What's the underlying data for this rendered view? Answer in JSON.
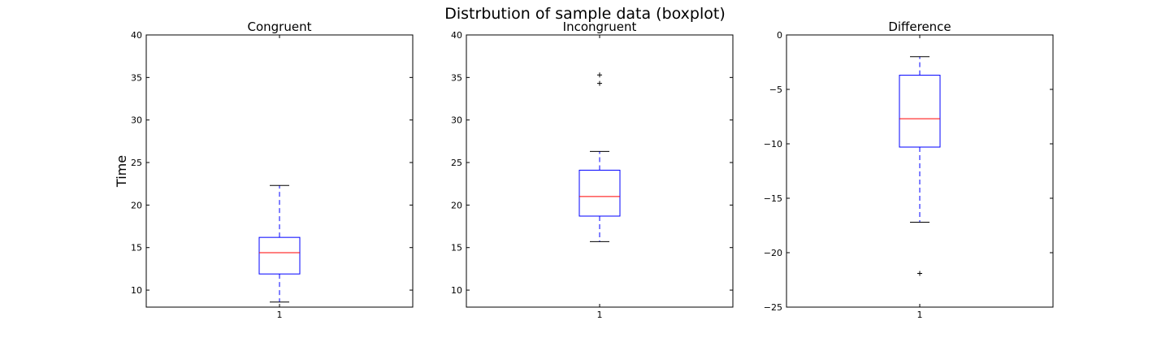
{
  "title": "Distrbution of sample data (boxplot)",
  "chart_data": [
    {
      "type": "boxplot",
      "title": "Congruent",
      "ylabel": "Time",
      "xlabel": "",
      "categories": [
        "1"
      ],
      "ylim": [
        8,
        40
      ],
      "yticks": [
        10,
        15,
        20,
        25,
        30,
        35,
        40
      ],
      "box": {
        "whisker_low": 8.6,
        "q1": 11.9,
        "median": 14.4,
        "q3": 16.2,
        "whisker_high": 22.3
      },
      "outliers": []
    },
    {
      "type": "boxplot",
      "title": "Incongruent",
      "ylabel": "",
      "xlabel": "",
      "categories": [
        "1"
      ],
      "ylim": [
        8,
        40
      ],
      "yticks": [
        10,
        15,
        20,
        25,
        30,
        35,
        40
      ],
      "box": {
        "whisker_low": 15.7,
        "q1": 18.7,
        "median": 21.0,
        "q3": 24.1,
        "whisker_high": 26.3
      },
      "outliers": [
        34.3,
        35.3
      ]
    },
    {
      "type": "boxplot",
      "title": "Difference",
      "ylabel": "",
      "xlabel": "",
      "categories": [
        "1"
      ],
      "ylim": [
        -25,
        0
      ],
      "yticks": [
        -25,
        -20,
        -15,
        -10,
        -5,
        0
      ],
      "box": {
        "whisker_low": -17.2,
        "q1": -10.3,
        "median": -7.7,
        "q3": -3.7,
        "whisker_high": -2.0
      },
      "outliers": [
        -21.9
      ]
    }
  ],
  "colors": {
    "box": "#0000ff",
    "median": "#ff0000",
    "whisker": "#0000ff",
    "caps": "#000000",
    "outliers": "#000000"
  }
}
